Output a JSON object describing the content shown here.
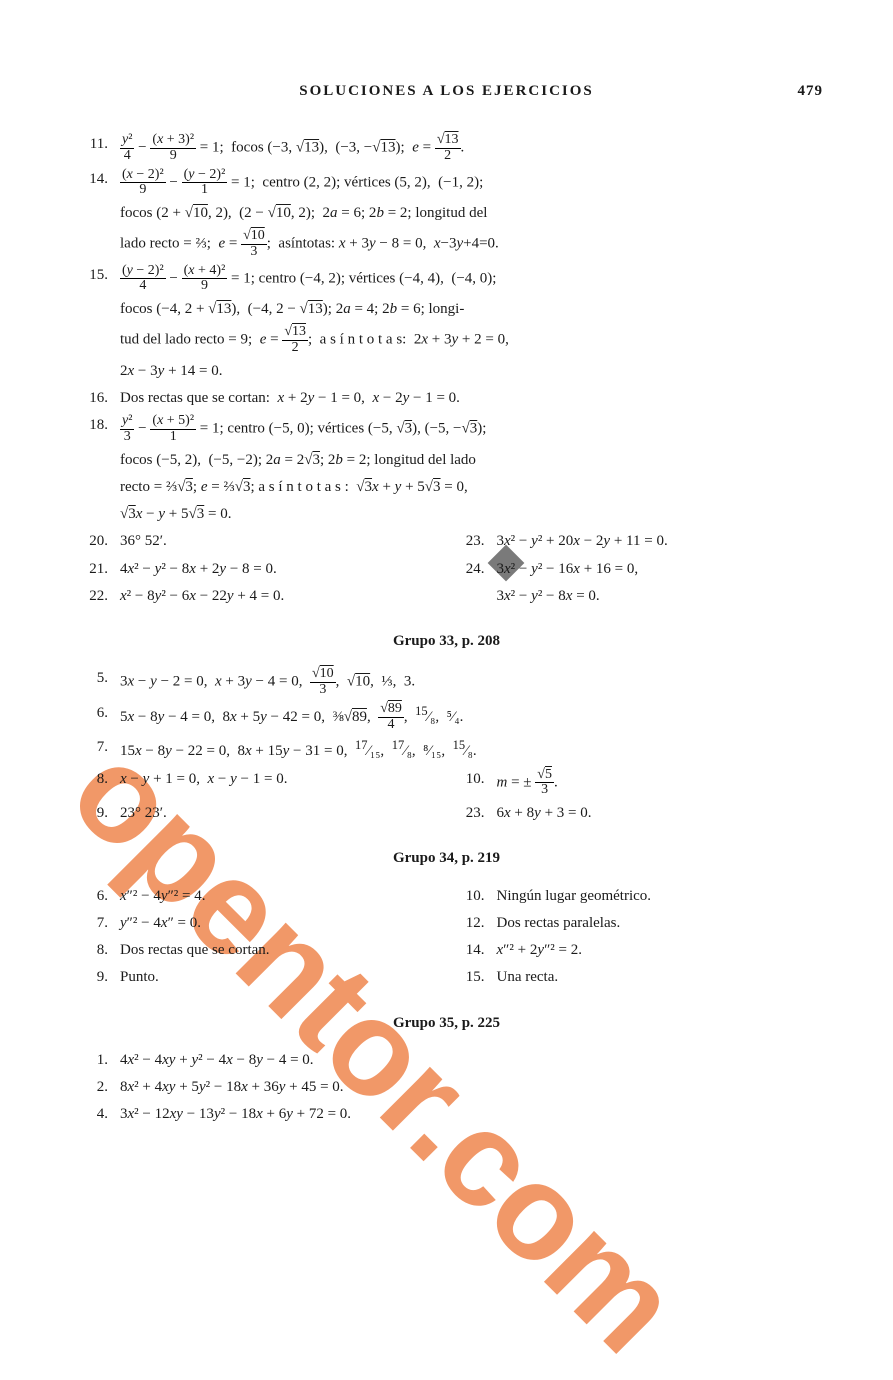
{
  "page": {
    "title": "SOLUCIONES A LOS EJERCICIOS",
    "number": "479",
    "background_color": "#ffffff",
    "text_color": "#1a1a1a",
    "font_family": "Times New Roman",
    "base_font_size": 15
  },
  "watermark": {
    "text": "opentor.com",
    "color": "#f08a54",
    "angle_deg": 45,
    "font_size": 135,
    "square_color": "#7a7a7a"
  },
  "sections": [
    {
      "items": [
        {
          "n": "11.",
          "html": "<span class=\"frac\"><span class=\"n\"><i>y</i>²</span><span class=\"d\">4</span></span> − <span class=\"frac\"><span class=\"n\">(<i>x</i> + 3)²</span><span class=\"d\">9</span></span> = 1;&nbsp;&nbsp;focos (−3, √<span class=\"sqrt\">13</span>),&nbsp;&nbsp;(−3, −√<span class=\"sqrt\">13</span>);&nbsp;&nbsp;<i>e</i> = <span class=\"frac\"><span class=\"n\">√<span class=\"sqrt\">13</span></span><span class=\"d\">2</span></span>."
        },
        {
          "n": "14.",
          "html": "<span class=\"frac\"><span class=\"n\">(<i>x</i> − 2)²</span><span class=\"d\">9</span></span> − <span class=\"frac\"><span class=\"n\">(<i>y</i> − 2)²</span><span class=\"d\">1</span></span> = 1;&nbsp;&nbsp;centro (2, 2);&nbsp;vértices (5, 2),&nbsp;&nbsp;(−1, 2);",
          "cont": [
            "focos (2 + √<span class=\"sqrt\">10</span>, 2),&nbsp;&nbsp;(2 − √<span class=\"sqrt\">10</span>, 2);&nbsp;&nbsp;2<i>a</i> = 6;&nbsp;2<i>b</i> = 2;&nbsp;longitud del",
            "lado recto = ⅔;&nbsp;&nbsp;<i>e</i> = <span class=\"frac\"><span class=\"n\">√<span class=\"sqrt\">10</span></span><span class=\"d\">3</span></span>;&nbsp;&nbsp;asíntotas:&nbsp;<i>x</i> + 3<i>y</i> − 8 = 0,&nbsp;&nbsp;<i>x</i>−3<i>y</i>+4=0."
          ]
        },
        {
          "n": "15.",
          "html": "<span class=\"frac\"><span class=\"n\">(<i>y</i> − 2)²</span><span class=\"d\">4</span></span> − <span class=\"frac\"><span class=\"n\">(<i>x</i> + 4)²</span><span class=\"d\">9</span></span> = 1;&nbsp;centro (−4, 2);&nbsp;vértices (−4, 4),&nbsp;&nbsp;(−4, 0);",
          "cont": [
            "focos (−4,&nbsp;2 + √<span class=\"sqrt\">13</span>),&nbsp;&nbsp;(−4, 2 − √<span class=\"sqrt\">13</span>);&nbsp;2<i>a</i> = 4;&nbsp;2<i>b</i> = 6;&nbsp;longi-",
            "tud del lado recto = 9;&nbsp;&nbsp;<i>e</i> = <span class=\"frac\"><span class=\"n\">√<span class=\"sqrt\">13</span></span><span class=\"d\">2</span></span>;&nbsp;&nbsp;a s í n t o t a s:&nbsp;&nbsp;2<i>x</i> + 3<i>y</i> + 2 = 0,",
            "2<i>x</i> − 3<i>y</i> + 14 = 0."
          ]
        },
        {
          "n": "16.",
          "html": "Dos rectas que se cortan:&nbsp;&nbsp;<i>x</i> + 2<i>y</i> − 1 = 0,&nbsp;&nbsp;<i>x</i> − 2<i>y</i> − 1 = 0."
        },
        {
          "n": "18.",
          "html": "<span class=\"frac\"><span class=\"n\"><i>y</i>²</span><span class=\"d\">3</span></span> − <span class=\"frac\"><span class=\"n\">(<i>x</i> + 5)²</span><span class=\"d\">1</span></span> = 1;&nbsp;centro (−5, 0);&nbsp;vértices (−5, √<span class=\"sqrt\">3</span>),&nbsp;(−5, −√<span class=\"sqrt\">3</span>);",
          "cont": [
            "focos (−5, 2),&nbsp;&nbsp;(−5, −2);&nbsp;2<i>a</i> = 2√<span class=\"sqrt\">3</span>;&nbsp;2<i>b</i> = 2;&nbsp;longitud del lado",
            "recto = ⅔√<span class=\"sqrt\">3</span>; <i>e</i> = ⅔√<span class=\"sqrt\">3</span>;&nbsp;a s í n t o t a s :&nbsp;&nbsp;√<span class=\"sqrt\">3</span><i>x</i> + <i>y</i> + 5√<span class=\"sqrt\">3</span> = 0,",
            "√<span class=\"sqrt\">3</span><i>x</i> − <i>y</i> + 5√<span class=\"sqrt\">3</span> = 0."
          ]
        }
      ],
      "twocol_rows": [
        {
          "ln": "20.",
          "l": "36° 52′.",
          "rn": "23.",
          "r": "3<i>x</i>² − <i>y</i>² + 20<i>x</i> − 2<i>y</i> + 11 = 0."
        },
        {
          "ln": "21.",
          "l": "4<i>x</i>² − <i>y</i>² − 8<i>x</i> + 2<i>y</i> − 8 = 0.",
          "rn": "24.",
          "r": "3<i>x</i>² − <i>y</i>² − 16<i>x</i> + 16 = 0,"
        },
        {
          "ln": "22.",
          "l": "<i>x</i>² − 8<i>y</i>² − 6<i>x</i> − 22<i>y</i> + 4 = 0.",
          "rn": "",
          "r": "3<i>x</i>² − <i>y</i>² − 8<i>x</i> = 0."
        }
      ]
    },
    {
      "group": "Grupo 33,  p. 208",
      "items": [
        {
          "n": "5.",
          "html": "3<i>x</i> − <i>y</i> − 2 = 0,&nbsp;&nbsp;<i>x</i> + 3<i>y</i> − 4 = 0,&nbsp;&nbsp;<span class=\"frac\"><span class=\"n\">√<span class=\"sqrt\">10</span></span><span class=\"d\">3</span></span>,&nbsp;&nbsp;√<span class=\"sqrt\">10</span>,&nbsp;&nbsp;⅓,&nbsp;&nbsp;3."
        },
        {
          "n": "6.",
          "html": "5<i>x</i> − 8<i>y</i> − 4 = 0,&nbsp;&nbsp;8<i>x</i> + 5<i>y</i> − 42 = 0,&nbsp;&nbsp;⅜√<span class=\"sqrt\">89</span>,&nbsp;&nbsp;<span class=\"frac\"><span class=\"n\">√<span class=\"sqrt\">89</span></span><span class=\"d\">4</span></span>,&nbsp;&nbsp;<sup>15</sup>⁄₈,&nbsp;&nbsp;⁵⁄₄."
        },
        {
          "n": "7.",
          "html": "15<i>x</i> − 8<i>y</i> − 22 = 0,&nbsp;&nbsp;8<i>x</i> + 15<i>y</i> − 31 = 0,&nbsp;&nbsp;<sup>17</sup>⁄₁₅,&nbsp;&nbsp;<sup>17</sup>⁄₈,&nbsp;&nbsp;⁸⁄₁₅,&nbsp;&nbsp;<sup>15</sup>⁄₈."
        }
      ],
      "twocol_rows": [
        {
          "ln": "8.",
          "l": "<i>x</i> − <i>y</i> + 1 = 0,&nbsp;&nbsp;<i>x</i> − <i>y</i> − 1 = 0.",
          "rn": "10.",
          "r": "<i>m</i> = ± <span class=\"frac\"><span class=\"n\">√<span class=\"sqrt\">5</span></span><span class=\"d\">3</span></span>."
        },
        {
          "ln": "9.",
          "l": "23° 23′.",
          "rn": "23.",
          "r": "6<i>x</i> + 8<i>y</i> + 3 = 0."
        }
      ]
    },
    {
      "group": "Grupo 34,  p. 219",
      "twocol_rows": [
        {
          "ln": "6.",
          "l": "<i>x</i>″² − 4<i>y</i>″² = 4.",
          "rn": "10.",
          "r": "Ningún lugar geométrico."
        },
        {
          "ln": "7.",
          "l": "<i>y</i>″² − 4<i>x</i>″ = 0.",
          "rn": "12.",
          "r": "Dos rectas paralelas."
        },
        {
          "ln": "8.",
          "l": "Dos rectas que se cortan.",
          "rn": "14.",
          "r": "<i>x</i>″² + 2<i>y</i>″² = 2."
        },
        {
          "ln": "9.",
          "l": "Punto.",
          "rn": "15.",
          "r": "Una recta."
        }
      ]
    },
    {
      "group": "Grupo 35,  p. 225",
      "items": [
        {
          "n": "1.",
          "html": "4<i>x</i>² − 4<i>xy</i> + <i>y</i>² − 4<i>x</i> − 8<i>y</i> − 4 = 0."
        },
        {
          "n": "2.",
          "html": "8<i>x</i>² + 4<i>xy</i> + 5<i>y</i>² − 18<i>x</i> + 36<i>y</i> + 45 = 0."
        },
        {
          "n": "4.",
          "html": "3<i>x</i>² − 12<i>xy</i> − 13<i>y</i>² − 18<i>x</i> + 6<i>y</i> + 72 = 0."
        }
      ]
    }
  ]
}
